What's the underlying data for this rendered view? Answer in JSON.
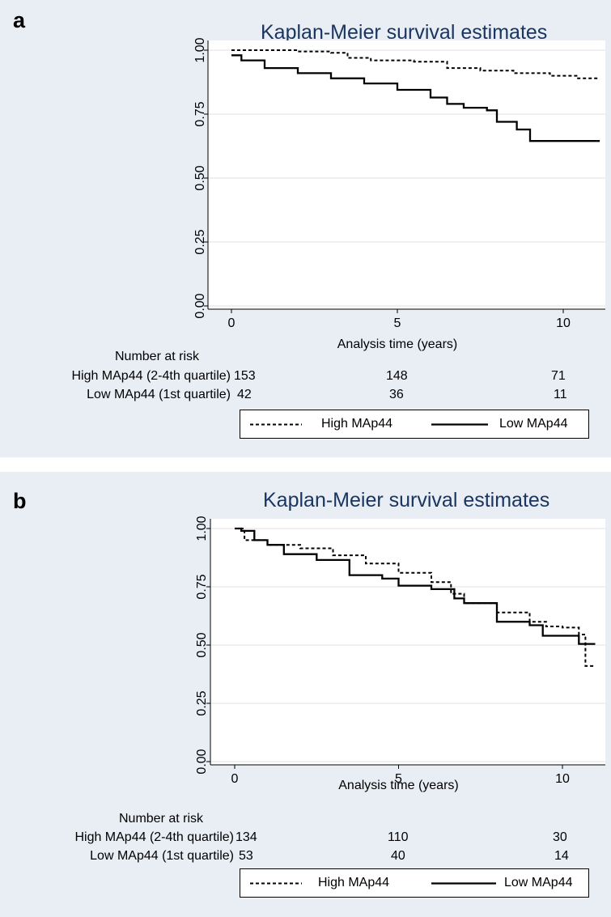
{
  "panels": [
    {
      "letter": "a",
      "title": "Kaplan-Meier survival estimates",
      "xlabel": "Analysis time (years)",
      "risk_title": "Number at risk",
      "risk_rows": [
        {
          "label": "High MAp44 (2-4th quartile)",
          "values": [
            "153",
            "148",
            "71"
          ]
        },
        {
          "label": "Low MAp44 (1st quartile)",
          "values": [
            "42",
            "36",
            "11"
          ]
        }
      ],
      "legend": {
        "high": "High MAp44",
        "low": "Low MAp44"
      }
    },
    {
      "letter": "b",
      "title": "Kaplan-Meier survival estimates",
      "xlabel": "Analysis time (years)",
      "risk_title": "Number at risk",
      "risk_rows": [
        {
          "label": "High MAp44 (2-4th quartile)",
          "values": [
            "134",
            "110",
            "30"
          ]
        },
        {
          "label": "Low MAp44 (1st quartile)",
          "values": [
            "53",
            "40",
            "14"
          ]
        }
      ],
      "legend": {
        "high": "High MAp44",
        "low": "Low MAp44"
      }
    }
  ],
  "chart_data": [
    {
      "type": "line",
      "title": "Kaplan-Meier survival estimates",
      "xlabel": "Analysis time (years)",
      "ylabel": "",
      "xlim": [
        0,
        11.1
      ],
      "ylim": [
        0,
        1
      ],
      "xticks": [
        "0",
        "5",
        "10"
      ],
      "yticks": [
        "0.00",
        "0.25",
        "0.50",
        "0.75",
        "1.00"
      ],
      "grid": true,
      "legend_position": "bottom",
      "series": [
        {
          "name": "High MAp44",
          "style": "dashed",
          "x": [
            0,
            1.0,
            2.0,
            3.0,
            3.5,
            4.2,
            5.5,
            6.5,
            7.5,
            8.5,
            9.3,
            9.6,
            10.4,
            11.1
          ],
          "y": [
            1.0,
            1.0,
            0.995,
            0.99,
            0.97,
            0.96,
            0.955,
            0.93,
            0.92,
            0.91,
            0.91,
            0.9,
            0.89,
            0.89
          ]
        },
        {
          "name": "Low MAp44",
          "style": "solid",
          "x": [
            0,
            0.3,
            1.0,
            2.0,
            3.0,
            4.0,
            5.0,
            6.0,
            6.5,
            7.0,
            7.7,
            8.0,
            8.6,
            9.0,
            10.0,
            11.1
          ],
          "y": [
            0.98,
            0.96,
            0.93,
            0.91,
            0.89,
            0.87,
            0.845,
            0.815,
            0.79,
            0.775,
            0.765,
            0.72,
            0.69,
            0.645,
            0.645,
            0.645
          ]
        }
      ]
    },
    {
      "type": "line",
      "title": "Kaplan-Meier survival estimates",
      "xlabel": "Analysis time (years)",
      "ylabel": "",
      "xlim": [
        0,
        11.1
      ],
      "ylim": [
        0,
        1
      ],
      "xticks": [
        "0",
        "5",
        "10"
      ],
      "yticks": [
        "0.00",
        "0.25",
        "0.50",
        "0.75",
        "1.00"
      ],
      "grid": true,
      "legend_position": "bottom",
      "series": [
        {
          "name": "High MAp44",
          "style": "dashed",
          "x": [
            0,
            0.3,
            1.0,
            2.0,
            3.0,
            4.0,
            5.0,
            6.0,
            6.6,
            7.0,
            8.0,
            9.0,
            9.5,
            10.0,
            10.5,
            10.7,
            11.0
          ],
          "y": [
            1.0,
            0.95,
            0.93,
            0.915,
            0.885,
            0.85,
            0.81,
            0.77,
            0.72,
            0.68,
            0.64,
            0.6,
            0.58,
            0.575,
            0.545,
            0.41,
            0.41
          ]
        },
        {
          "name": "Low MAp44",
          "style": "solid",
          "x": [
            0,
            0.2,
            0.6,
            1.0,
            1.5,
            2.5,
            3.5,
            4.5,
            5.0,
            6.0,
            6.7,
            7.0,
            8.0,
            9.0,
            9.2,
            9.4,
            10.0,
            10.5,
            11.0
          ],
          "y": [
            1.0,
            0.99,
            0.95,
            0.93,
            0.89,
            0.865,
            0.8,
            0.785,
            0.755,
            0.74,
            0.7,
            0.68,
            0.6,
            0.585,
            0.585,
            0.54,
            0.54,
            0.505,
            0.505
          ]
        }
      ]
    }
  ]
}
